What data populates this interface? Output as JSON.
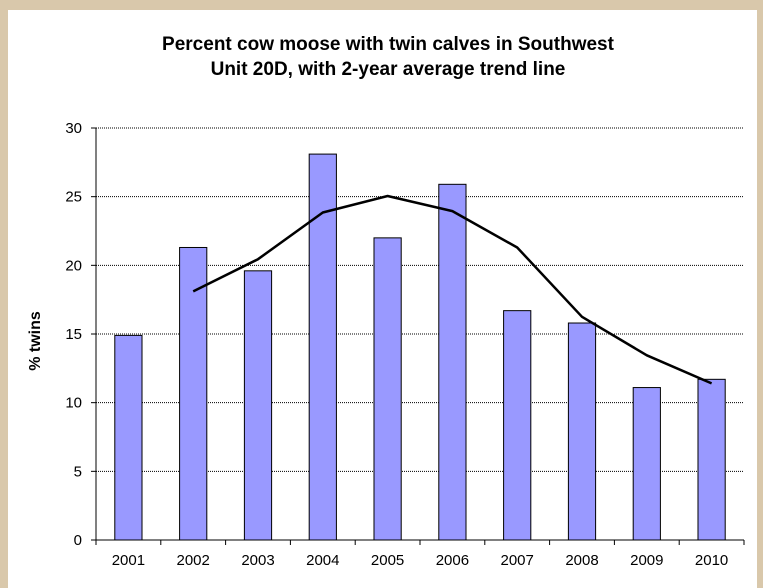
{
  "chart_data": {
    "type": "bar",
    "title_lines": [
      "Percent cow moose with twin calves in Southwest",
      "Unit 20D, with 2-year average trend line"
    ],
    "ylabel": "% twins",
    "xlabel": "",
    "categories": [
      "2001",
      "2002",
      "2003",
      "2004",
      "2005",
      "2006",
      "2007",
      "2008",
      "2009",
      "2010"
    ],
    "series": [
      {
        "type": "bar",
        "values": [
          14.9,
          21.3,
          19.6,
          28.1,
          22.0,
          25.9,
          16.7,
          15.8,
          11.1,
          11.7
        ],
        "color": "#9999ff"
      },
      {
        "type": "line",
        "values": [
          null,
          18.1,
          20.45,
          23.85,
          25.05,
          23.95,
          21.3,
          16.25,
          13.45,
          11.4
        ],
        "color": "#000000"
      }
    ],
    "ylim": [
      0,
      30
    ],
    "yticks": [
      0,
      5,
      10,
      15,
      20,
      25,
      30
    ],
    "grid": "horizontal dotted",
    "legend": "none"
  }
}
